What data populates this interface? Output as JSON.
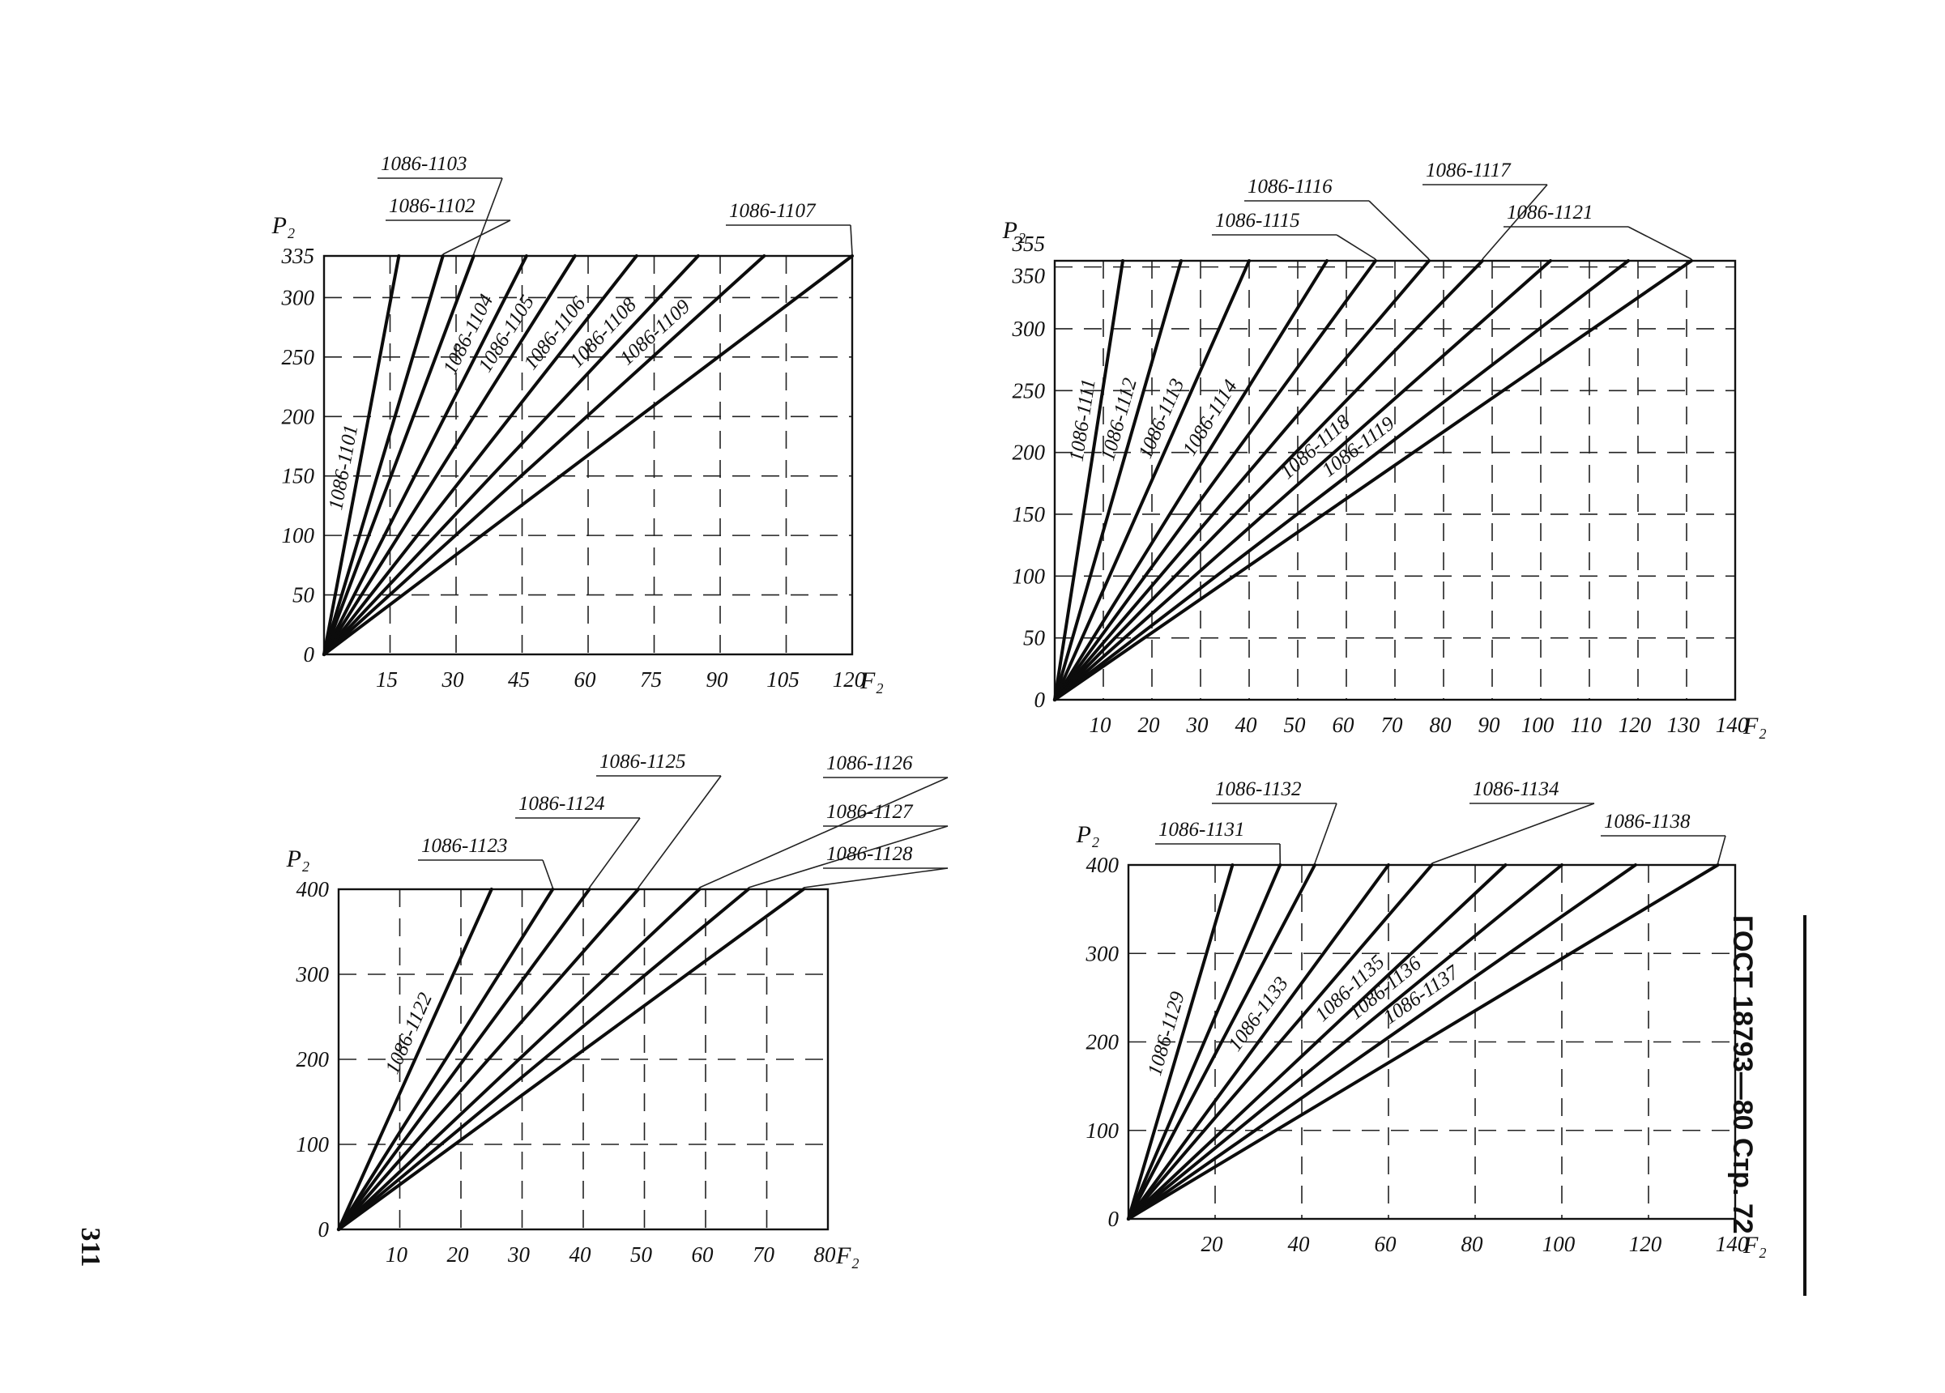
{
  "page": {
    "page_number": "311",
    "stamp": "ГОСТ 18793—80 Стр. 72"
  },
  "chart_data": [
    {
      "type": "line",
      "title": "",
      "xlabel": "F₂",
      "ylabel": "P₂",
      "xlim": [
        0,
        120
      ],
      "ylim": [
        0,
        335
      ],
      "x_ticks": [
        "15",
        "30",
        "45",
        "60",
        "75",
        "90",
        "105",
        "120"
      ],
      "y_ticks": [
        "0",
        "50",
        "100",
        "150",
        "200",
        "250",
        "300",
        "335"
      ],
      "grid": true,
      "series": [
        {
          "name": "1086-1101",
          "x": [
            0,
            17
          ],
          "y": [
            0,
            335
          ]
        },
        {
          "name": "1086-1102",
          "x": [
            0,
            27
          ],
          "y": [
            0,
            335
          ]
        },
        {
          "name": "1086-1103",
          "x": [
            0,
            34
          ],
          "y": [
            0,
            335
          ]
        },
        {
          "name": "1086-1104",
          "x": [
            0,
            46
          ],
          "y": [
            0,
            335
          ]
        },
        {
          "name": "1086-1105",
          "x": [
            0,
            57
          ],
          "y": [
            0,
            335
          ]
        },
        {
          "name": "1086-1106",
          "x": [
            0,
            71
          ],
          "y": [
            0,
            335
          ]
        },
        {
          "name": "1086-1107",
          "x": [
            0,
            120
          ],
          "y": [
            0,
            335
          ]
        },
        {
          "name": "1086-1108",
          "x": [
            0,
            85
          ],
          "y": [
            0,
            335
          ]
        },
        {
          "name": "1086-1109",
          "x": [
            0,
            100
          ],
          "y": [
            0,
            335
          ]
        }
      ]
    },
    {
      "type": "line",
      "title": "",
      "xlabel": "F₂",
      "ylabel": "P₂",
      "xlim": [
        0,
        140
      ],
      "ylim": [
        0,
        355
      ],
      "x_ticks": [
        "10",
        "20",
        "30",
        "40",
        "50",
        "60",
        "70",
        "80",
        "90",
        "100",
        "110",
        "120",
        "130",
        "140"
      ],
      "y_ticks": [
        "0",
        "50",
        "100",
        "150",
        "200",
        "250",
        "300",
        "350",
        "355"
      ],
      "grid": true,
      "series": [
        {
          "name": "1086-1111",
          "x": [
            0,
            14
          ],
          "y": [
            0,
            355
          ]
        },
        {
          "name": "1086-1112",
          "x": [
            0,
            26
          ],
          "y": [
            0,
            355
          ]
        },
        {
          "name": "1086-1113",
          "x": [
            0,
            40
          ],
          "y": [
            0,
            355
          ]
        },
        {
          "name": "1086-1114",
          "x": [
            0,
            56
          ],
          "y": [
            0,
            355
          ]
        },
        {
          "name": "1086-1115",
          "x": [
            0,
            66
          ],
          "y": [
            0,
            355
          ]
        },
        {
          "name": "1086-1116",
          "x": [
            0,
            77
          ],
          "y": [
            0,
            355
          ]
        },
        {
          "name": "1086-1117",
          "x": [
            0,
            88
          ],
          "y": [
            0,
            355
          ]
        },
        {
          "name": "1086-1118",
          "x": [
            0,
            102
          ],
          "y": [
            0,
            355
          ]
        },
        {
          "name": "1086-1119",
          "x": [
            0,
            118
          ],
          "y": [
            0,
            355
          ]
        },
        {
          "name": "1086-1121",
          "x": [
            0,
            131
          ],
          "y": [
            0,
            355
          ]
        }
      ]
    },
    {
      "type": "line",
      "title": "",
      "xlabel": "F₂",
      "ylabel": "P₂",
      "xlim": [
        0,
        80
      ],
      "ylim": [
        0,
        400
      ],
      "x_ticks": [
        "10",
        "20",
        "30",
        "40",
        "50",
        "60",
        "70",
        "80"
      ],
      "y_ticks": [
        "0",
        "100",
        "200",
        "300",
        "400"
      ],
      "grid": true,
      "series": [
        {
          "name": "1086-1122",
          "x": [
            0,
            25
          ],
          "y": [
            0,
            400
          ]
        },
        {
          "name": "1086-1123",
          "x": [
            0,
            35
          ],
          "y": [
            0,
            400
          ]
        },
        {
          "name": "1086-1124",
          "x": [
            0,
            41
          ],
          "y": [
            0,
            400
          ]
        },
        {
          "name": "1086-1125",
          "x": [
            0,
            49
          ],
          "y": [
            0,
            400
          ]
        },
        {
          "name": "1086-1126",
          "x": [
            0,
            59
          ],
          "y": [
            0,
            400
          ]
        },
        {
          "name": "1086-1127",
          "x": [
            0,
            67
          ],
          "y": [
            0,
            400
          ]
        },
        {
          "name": "1086-1128",
          "x": [
            0,
            76
          ],
          "y": [
            0,
            400
          ]
        }
      ]
    },
    {
      "type": "line",
      "title": "",
      "xlabel": "F₂",
      "ylabel": "P₂",
      "xlim": [
        0,
        140
      ],
      "ylim": [
        0,
        400
      ],
      "x_ticks": [
        "20",
        "40",
        "60",
        "80",
        "100",
        "120",
        "140"
      ],
      "y_ticks": [
        "0",
        "100",
        "200",
        "300",
        "400"
      ],
      "grid": true,
      "series": [
        {
          "name": "1086-1129",
          "x": [
            0,
            24
          ],
          "y": [
            0,
            400
          ]
        },
        {
          "name": "1086-1131",
          "x": [
            0,
            35
          ],
          "y": [
            0,
            400
          ]
        },
        {
          "name": "1086-1132",
          "x": [
            0,
            43
          ],
          "y": [
            0,
            400
          ]
        },
        {
          "name": "1086-1133",
          "x": [
            0,
            60
          ],
          "y": [
            0,
            400
          ]
        },
        {
          "name": "1086-1134",
          "x": [
            0,
            70
          ],
          "y": [
            0,
            400
          ]
        },
        {
          "name": "1086-1135",
          "x": [
            0,
            87
          ],
          "y": [
            0,
            400
          ]
        },
        {
          "name": "1086-1136",
          "x": [
            0,
            100
          ],
          "y": [
            0,
            400
          ]
        },
        {
          "name": "1086-1137",
          "x": [
            0,
            117
          ],
          "y": [
            0,
            400
          ]
        },
        {
          "name": "1086-1138",
          "x": [
            0,
            136
          ],
          "y": [
            0,
            400
          ]
        }
      ]
    }
  ]
}
